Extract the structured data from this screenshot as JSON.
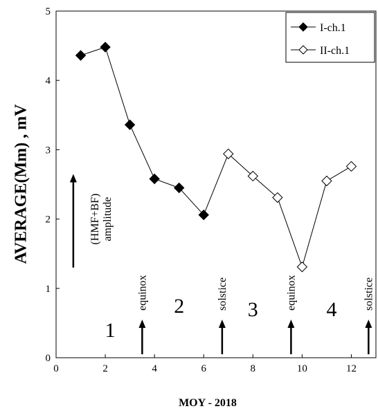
{
  "chart_data": {
    "type": "line",
    "xlabel": "MOY - 2018",
    "ylabel": "AVERAGE(Mm)  ,  mV",
    "xlim": [
      0,
      13
    ],
    "ylim": [
      0,
      5
    ],
    "x_ticks": [
      "0",
      "2",
      "4",
      "6",
      "8",
      "10",
      "12"
    ],
    "y_ticks": [
      "0",
      "1",
      "2",
      "3",
      "4",
      "5"
    ],
    "grid": false,
    "legend_position": "top-right",
    "series": [
      {
        "name": "I-ch.1",
        "marker": "filled-diamond",
        "x": [
          1,
          2,
          3,
          4,
          5,
          6
        ],
        "y": [
          4.36,
          4.48,
          3.36,
          2.58,
          2.45,
          2.06
        ]
      },
      {
        "name": "II-ch.1",
        "marker": "open-diamond",
        "x": [
          6,
          7,
          8,
          9,
          10,
          11,
          12
        ],
        "y": [
          2.06,
          2.94,
          2.62,
          2.31,
          1.31,
          2.55,
          2.76
        ]
      }
    ],
    "annotations": {
      "amplitude_line1": "(HMF+BF)",
      "amplitude_line2": "amplitude",
      "amplitude_arrow_x": 0.7,
      "amplitude_arrow_y": [
        1.3,
        2.65
      ],
      "season_numbers": [
        {
          "label": "1",
          "x": 2.2,
          "y": 0.3
        },
        {
          "label": "2",
          "x": 5.0,
          "y": 0.65
        },
        {
          "label": "3",
          "x": 8.0,
          "y": 0.6
        },
        {
          "label": "4",
          "x": 11.2,
          "y": 0.6
        }
      ],
      "events": [
        {
          "label": "equinox",
          "x": 3.5
        },
        {
          "label": "solstice",
          "x": 6.75
        },
        {
          "label": "equinox",
          "x": 9.55
        },
        {
          "label": "solstice",
          "x": 12.7
        }
      ],
      "event_arrow_y": [
        0.05,
        0.55
      ]
    }
  }
}
